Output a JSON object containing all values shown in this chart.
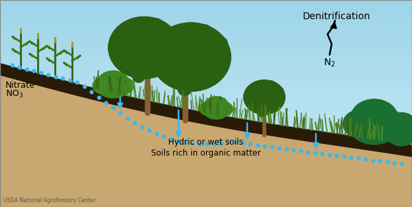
{
  "fig_width": 6.0,
  "fig_height": 3.02,
  "dpi": 100,
  "sky_color_top": "#9dd4e8",
  "sky_color_bottom": "#ceedf8",
  "ground_dark": "#7a5820",
  "ground_mid": "#a07840",
  "ground_light": "#c8a870",
  "topsoil_color": "#2a1a08",
  "grass_color_dark": "#3a6a10",
  "grass_color_mid": "#4a8020",
  "tree_green_dark": "#2a6010",
  "tree_green_mid": "#3a8820",
  "tree_green_light": "#6ab040",
  "tree_trunk": "#8a6030",
  "dot_color": "#3ab8f0",
  "text_denitrification": "Denitrification",
  "text_n2": "N$_2$",
  "text_nitrate": "Nitrate",
  "text_no3": "NO$_3$",
  "text_hydric": "Hydric or wet soils",
  "text_soils": "Soils rich in organic matter",
  "text_usda": "USDA National Agroforestry Center",
  "border_color": "#888888"
}
